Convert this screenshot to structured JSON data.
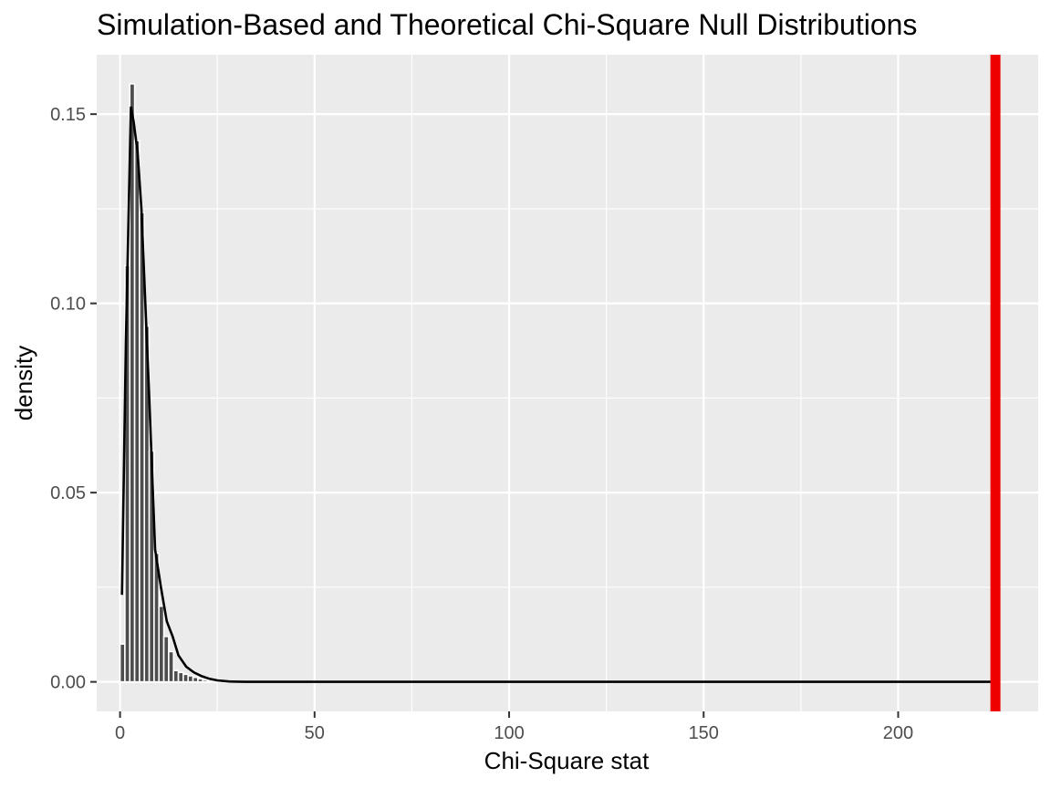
{
  "chart_data": {
    "type": "bar",
    "title": "Simulation-Based and Theoretical Chi-Square Null Distributions",
    "xlabel": "Chi-Square stat",
    "ylabel": "density",
    "xlim": [
      -6,
      236
    ],
    "ylim": [
      -0.0078,
      0.1657
    ],
    "x_ticks": [
      0,
      50,
      100,
      150,
      200
    ],
    "x_tick_labels": [
      "0",
      "50",
      "100",
      "150",
      "200"
    ],
    "y_ticks": [
      0.0,
      0.05,
      0.1,
      0.15
    ],
    "y_tick_labels": [
      "0.00",
      "0.05",
      "0.10",
      "0.15"
    ],
    "grid": true,
    "legend": "none",
    "histogram": {
      "name": "simulated",
      "bin_width": 1.25,
      "bin_starts": [
        0,
        1.25,
        2.5,
        3.75,
        5,
        6.25,
        7.5,
        8.75,
        10,
        11.25,
        12.5,
        13.75,
        15,
        16.25,
        17.5,
        18.75,
        20,
        21.25
      ],
      "density": [
        0.01,
        0.11,
        0.158,
        0.143,
        0.124,
        0.094,
        0.061,
        0.034,
        0.02,
        0.012,
        0.008,
        0.003,
        0.0025,
        0.002,
        0.0016,
        0.0012,
        0.0008,
        0.0005
      ],
      "fill": "#4d4d4d",
      "edge": "#ffffff"
    },
    "theoretical_curve": {
      "name": "theoretical",
      "x": [
        0.5,
        1.5,
        2.8,
        3.5,
        4.5,
        5.5,
        6.5,
        7.5,
        9,
        10.5,
        12,
        13.5,
        15,
        17,
        19,
        21,
        23,
        25,
        28,
        32,
        40,
        60,
        100,
        150,
        200,
        224
      ],
      "y": [
        0.023,
        0.09,
        0.152,
        0.148,
        0.14,
        0.125,
        0.1,
        0.075,
        0.035,
        0.025,
        0.016,
        0.012,
        0.007,
        0.004,
        0.0025,
        0.0015,
        0.0008,
        0.0004,
        0.0001,
        0.0,
        0.0,
        0.0,
        0.0,
        0.0,
        0.0,
        0.0
      ],
      "color": "#000000"
    },
    "observed_line": {
      "x": 225,
      "color": "#ee0000"
    },
    "panel_background": "#ebebeb",
    "grid_color": "#ffffff"
  }
}
